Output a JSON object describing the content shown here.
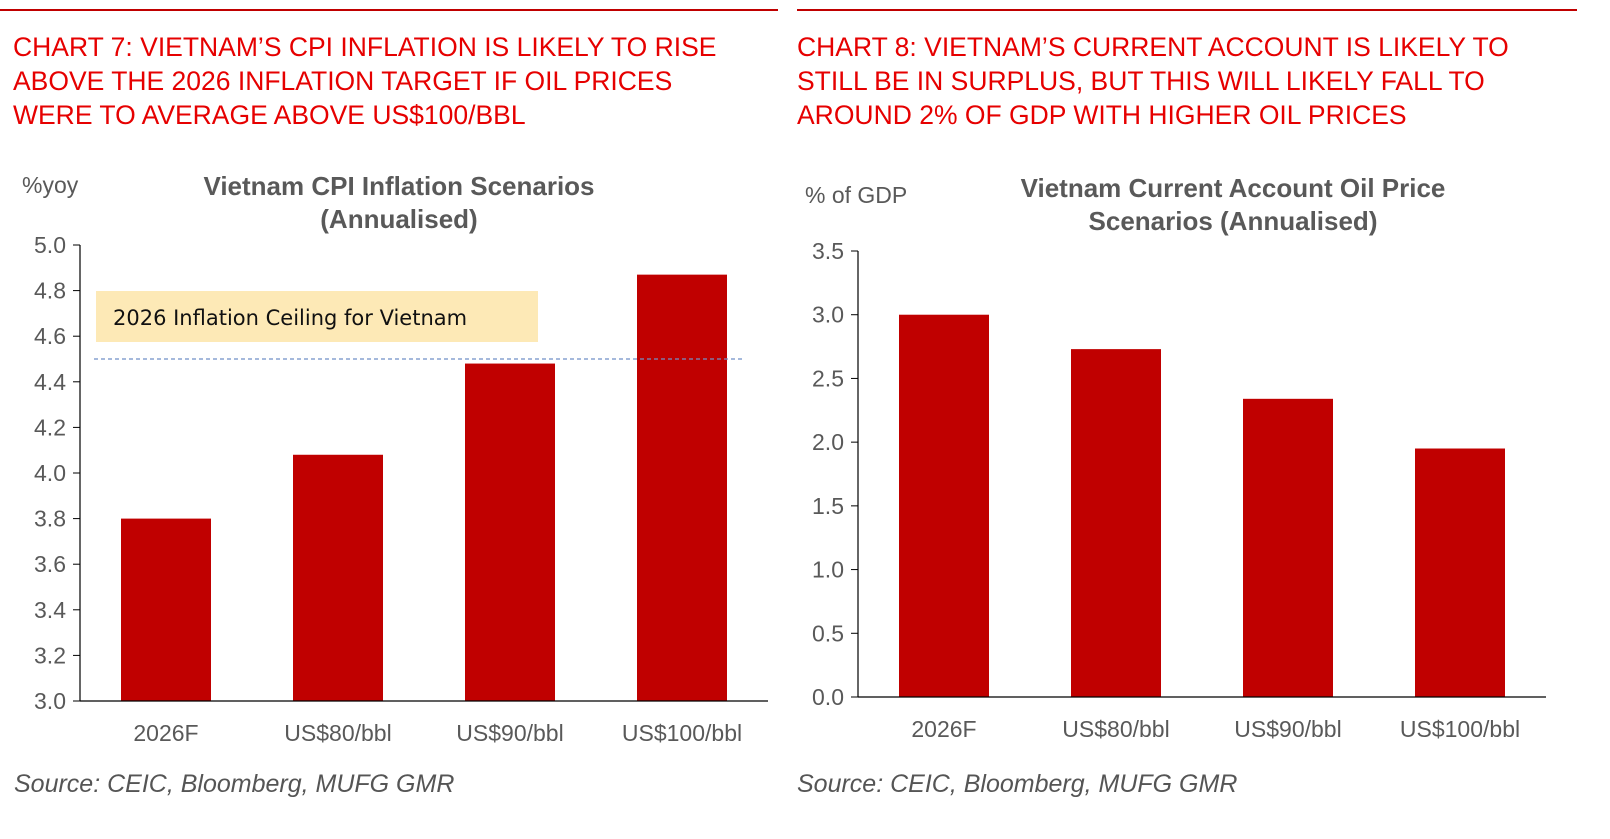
{
  "colors": {
    "accent_red": "#e60000",
    "bar": "#c00000",
    "axis": "#000000",
    "ceiling_line": "#6f8fc8",
    "note_fill": "#fde9b6",
    "text_grey": "#595959"
  },
  "left": {
    "heading": "CHART 7: VIETNAM’S CPI INFLATION IS LIKELY TO RISE\nABOVE THE 2026 INFLATION TARGET IF OIL PRICES\nWERE TO AVERAGE ABOVE US$100/BBL",
    "source": "Source: CEIC, Bloomberg, MUFG GMR"
  },
  "right": {
    "heading": "CHART 8: VIETNAM’S CURRENT ACCOUNT IS LIKELY TO\nSTILL BE IN SURPLUS, BUT THIS WILL LIKELY FALL TO\nAROUND 2% OF GDP WITH HIGHER OIL PRICES",
    "source": "Source: CEIC, Bloomberg, MUFG GMR"
  },
  "chart_data": [
    {
      "type": "bar",
      "title": [
        "Vietnam CPI Inflation Scenarios",
        "(Annualised)"
      ],
      "ylabel": "%yoy",
      "xlabel": "",
      "categories": [
        "2026F",
        "US$80/bbl",
        "US$90/bbl",
        "US$100/bbl"
      ],
      "values": [
        3.8,
        4.08,
        4.48,
        4.87
      ],
      "ylim": [
        3.0,
        5.0
      ],
      "yticks": [
        "3.0",
        "3.2",
        "3.4",
        "3.6",
        "3.8",
        "4.0",
        "4.2",
        "4.4",
        "4.6",
        "4.8",
        "5.0"
      ],
      "grid": false,
      "reference_line": {
        "value": 4.5,
        "label": "2026 Inflation Ceiling for Vietnam"
      }
    },
    {
      "type": "bar",
      "title": [
        "Vietnam Current Account Oil Price",
        "Scenarios (Annualised)"
      ],
      "ylabel": "% of GDP",
      "xlabel": "",
      "categories": [
        "2026F",
        "US$80/bbl",
        "US$90/bbl",
        "US$100/bbl"
      ],
      "values": [
        3.0,
        2.73,
        2.34,
        1.95
      ],
      "ylim": [
        0.0,
        3.5
      ],
      "yticks": [
        "0.0",
        "0.5",
        "1.0",
        "1.5",
        "2.0",
        "2.5",
        "3.0",
        "3.5"
      ],
      "grid": false
    }
  ]
}
